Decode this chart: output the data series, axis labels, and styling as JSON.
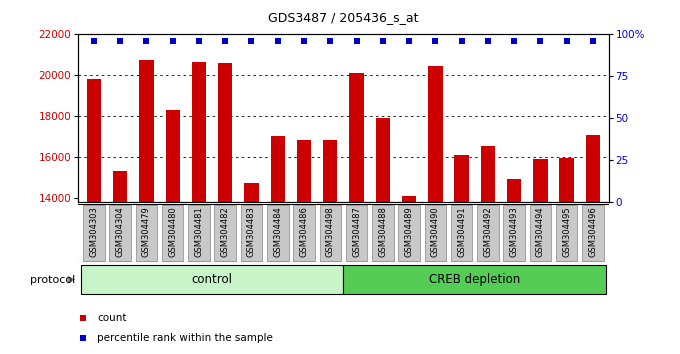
{
  "title": "GDS3487 / 205436_s_at",
  "categories": [
    "GSM304303",
    "GSM304304",
    "GSM304479",
    "GSM304480",
    "GSM304481",
    "GSM304482",
    "GSM304483",
    "GSM304484",
    "GSM304486",
    "GSM304498",
    "GSM304487",
    "GSM304488",
    "GSM304489",
    "GSM304490",
    "GSM304491",
    "GSM304492",
    "GSM304493",
    "GSM304494",
    "GSM304495",
    "GSM304496"
  ],
  "bar_values": [
    19800,
    15300,
    20700,
    18300,
    20600,
    20550,
    14700,
    17000,
    16800,
    16800,
    20100,
    17900,
    14100,
    20400,
    16100,
    16500,
    14900,
    15900,
    15950,
    17050
  ],
  "control_count": 10,
  "creb_count": 10,
  "ylim_left": [
    13800,
    22000
  ],
  "ylim_right": [
    0,
    100
  ],
  "yticks_left": [
    14000,
    16000,
    18000,
    20000,
    22000
  ],
  "yticks_right": [
    0,
    25,
    50,
    75,
    100
  ],
  "bar_color": "#cc0000",
  "dot_color": "#0000cc",
  "control_color": "#c8f5c8",
  "creb_color": "#55cc55",
  "bg_color": "#c8c8c8",
  "grid_color": "#000000",
  "dotted_levels": [
    16000,
    18000,
    20000
  ],
  "legend_count_label": "count",
  "legend_percentile_label": "percentile rank within the sample",
  "protocol_label": "protocol",
  "control_label": "control",
  "creb_label": "CREB depletion",
  "title_fontsize": 9,
  "bar_width": 0.55
}
